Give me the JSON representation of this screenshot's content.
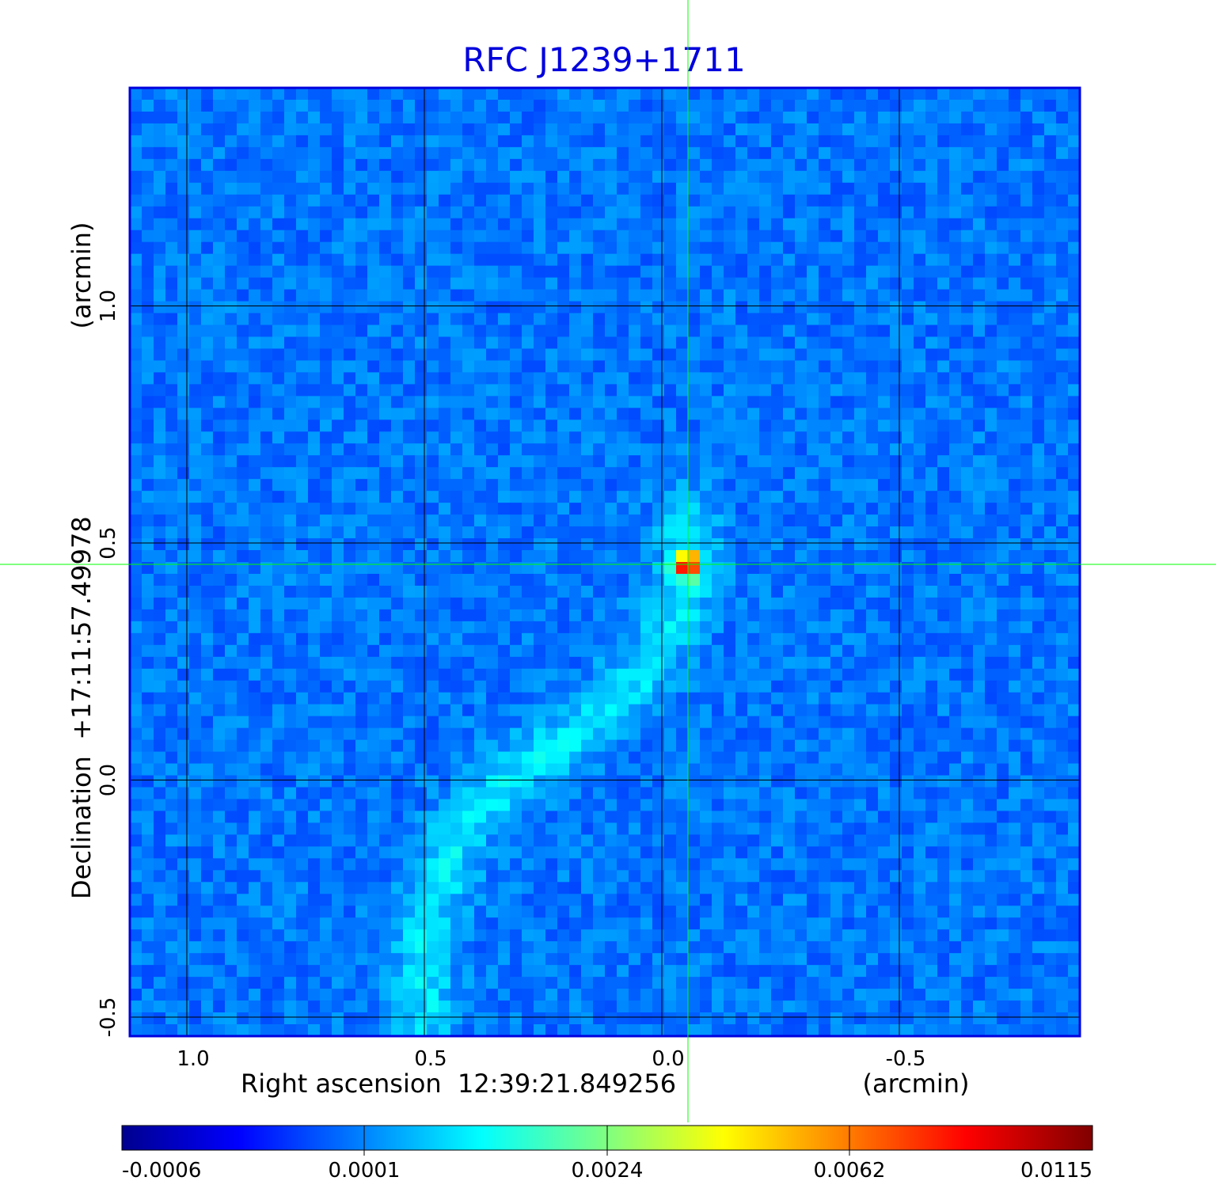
{
  "chart_data": {
    "type": "heatmap",
    "title": "RFC J1239+1711",
    "xlabel": "Right ascension  12:39:21.849256",
    "xunit": "(arcmin)",
    "ylabel": "Declination  +17:11:57.49978",
    "yunit": "(arcmin)",
    "x_ticks": [
      "1.0",
      "0.5",
      "0.0",
      "-0.5"
    ],
    "y_ticks": [
      "1.0",
      "0.5",
      "0.0",
      "-0.5"
    ],
    "x_tick_values": [
      1.0,
      0.5,
      0.0,
      -0.5
    ],
    "y_tick_values": [
      1.0,
      0.5,
      0.0,
      -0.5
    ],
    "xlim": [
      1.12,
      -0.88
    ],
    "ylim": [
      -0.54,
      1.46
    ],
    "crosshair": {
      "x": -0.055,
      "y": 0.455,
      "color": "#00ff00"
    },
    "colormap": "jet",
    "colorbar_ticks": [
      "-0.0006",
      "0.0001",
      "0.0024",
      "0.0062",
      "0.0115"
    ],
    "grid": true,
    "features": [
      {
        "name": "core",
        "x": -0.055,
        "y": 0.455,
        "peak": 0.0115
      },
      {
        "name": "jet",
        "path": [
          [
            -0.055,
            0.55
          ],
          [
            -0.05,
            0.4
          ],
          [
            0.02,
            0.25
          ],
          [
            0.15,
            0.12
          ],
          [
            0.3,
            0.02
          ],
          [
            0.42,
            -0.1
          ],
          [
            0.5,
            -0.3
          ],
          [
            0.5,
            -0.5
          ]
        ]
      }
    ],
    "colors": {
      "title": "#0000dd",
      "frame": "#0000dd",
      "grid": "#000000",
      "crosshair": "#00ff00"
    }
  }
}
